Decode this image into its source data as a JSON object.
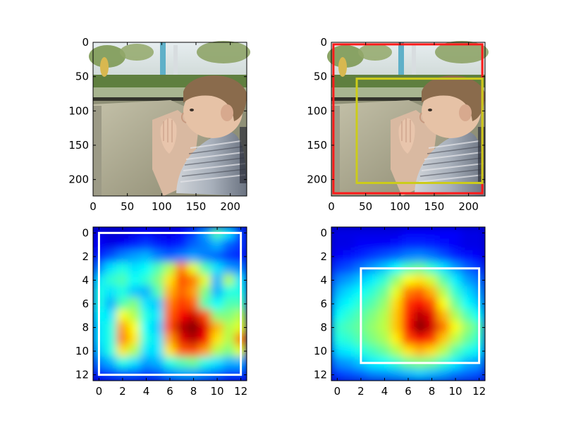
{
  "figure": {
    "background": "#ffffff"
  },
  "chart_data": [
    {
      "type": "image",
      "panel": "top-left",
      "content": "photo: young boy looking out of a vehicle window at trees and greenery",
      "xlim": [
        0,
        224
      ],
      "ylim": [
        224,
        0
      ],
      "xticks": [
        "0",
        "50",
        "100",
        "150",
        "200"
      ],
      "yticks": [
        "0",
        "50",
        "100",
        "150",
        "200"
      ],
      "xtick_values": [
        0,
        50,
        100,
        150,
        200
      ],
      "ytick_values": [
        0,
        50,
        100,
        150,
        200
      ],
      "boxes": []
    },
    {
      "type": "image",
      "panel": "top-right",
      "content": "same photo with two bounding boxes overlaid",
      "xlim": [
        0,
        224
      ],
      "ylim": [
        224,
        0
      ],
      "xticks": [
        "0",
        "50",
        "100",
        "150",
        "200"
      ],
      "yticks": [
        "0",
        "50",
        "100",
        "150",
        "200"
      ],
      "xtick_values": [
        0,
        50,
        100,
        150,
        200
      ],
      "ytick_values": [
        0,
        50,
        100,
        150,
        200
      ],
      "boxes": [
        {
          "x0": 3,
          "y0": 3,
          "x1": 220,
          "y1": 220,
          "color": "#ff1a1a"
        },
        {
          "x0": 37,
          "y0": 53,
          "x1": 220,
          "y1": 205,
          "color": "#cccc1a"
        }
      ]
    },
    {
      "type": "heatmap",
      "panel": "bottom-left",
      "colormap": "jet",
      "xlim": [
        -0.5,
        12.5
      ],
      "ylim": [
        12.5,
        -0.5
      ],
      "xticks": [
        "0",
        "2",
        "4",
        "6",
        "8",
        "10",
        "12"
      ],
      "yticks": [
        "0",
        "2",
        "4",
        "6",
        "8",
        "10",
        "12"
      ],
      "xtick_values": [
        0,
        2,
        4,
        6,
        8,
        10,
        12
      ],
      "ytick_values": [
        0,
        2,
        4,
        6,
        8,
        10,
        12
      ],
      "grid": [
        [
          0.1,
          0.08,
          0.08,
          0.1,
          0.12,
          0.1,
          0.1,
          0.12,
          0.18,
          0.28,
          0.45,
          0.35,
          0.18
        ],
        [
          0.12,
          0.1,
          0.12,
          0.15,
          0.18,
          0.15,
          0.14,
          0.16,
          0.22,
          0.25,
          0.3,
          0.22,
          0.18
        ],
        [
          0.15,
          0.2,
          0.25,
          0.28,
          0.3,
          0.25,
          0.22,
          0.25,
          0.28,
          0.25,
          0.22,
          0.18,
          0.15
        ],
        [
          0.25,
          0.35,
          0.4,
          0.35,
          0.38,
          0.45,
          0.55,
          0.75,
          0.6,
          0.45,
          0.35,
          0.28,
          0.25
        ],
        [
          0.35,
          0.42,
          0.45,
          0.38,
          0.42,
          0.5,
          0.65,
          0.8,
          0.75,
          0.6,
          0.3,
          0.55,
          0.35
        ],
        [
          0.4,
          0.35,
          0.4,
          0.32,
          0.3,
          0.45,
          0.7,
          0.78,
          0.72,
          0.5,
          0.3,
          0.4,
          0.4
        ],
        [
          0.4,
          0.3,
          0.45,
          0.5,
          0.35,
          0.32,
          0.75,
          0.82,
          0.78,
          0.45,
          0.38,
          0.45,
          0.45
        ],
        [
          0.38,
          0.35,
          0.62,
          0.55,
          0.4,
          0.35,
          0.78,
          0.88,
          0.92,
          0.8,
          0.5,
          0.5,
          0.55
        ],
        [
          0.35,
          0.4,
          0.72,
          0.62,
          0.38,
          0.32,
          0.8,
          0.95,
          1.0,
          0.9,
          0.7,
          0.55,
          0.6
        ],
        [
          0.35,
          0.4,
          0.75,
          0.65,
          0.4,
          0.35,
          0.72,
          0.9,
          0.95,
          0.88,
          0.65,
          0.55,
          0.75
        ],
        [
          0.32,
          0.4,
          0.65,
          0.55,
          0.35,
          0.35,
          0.65,
          0.78,
          0.8,
          0.72,
          0.55,
          0.5,
          0.6
        ],
        [
          0.25,
          0.3,
          0.4,
          0.35,
          0.28,
          0.3,
          0.4,
          0.45,
          0.48,
          0.4,
          0.35,
          0.3,
          0.3
        ],
        [
          0.15,
          0.18,
          0.2,
          0.2,
          0.18,
          0.2,
          0.25,
          0.28,
          0.28,
          0.25,
          0.22,
          0.18,
          0.18
        ]
      ],
      "boxes": [
        {
          "x0": 0,
          "y0": 0,
          "x1": 12,
          "y1": 12,
          "color": "#ffffff"
        }
      ]
    },
    {
      "type": "heatmap",
      "panel": "bottom-right",
      "colormap": "jet",
      "xlim": [
        -0.5,
        12.5
      ],
      "ylim": [
        12.5,
        -0.5
      ],
      "xticks": [
        "0",
        "2",
        "4",
        "6",
        "8",
        "10",
        "12"
      ],
      "yticks": [
        "0",
        "2",
        "4",
        "6",
        "8",
        "10",
        "12"
      ],
      "xtick_values": [
        0,
        2,
        4,
        6,
        8,
        10,
        12
      ],
      "ytick_values": [
        0,
        2,
        4,
        6,
        8,
        10,
        12
      ],
      "grid": [
        [
          0.1,
          0.1,
          0.1,
          0.1,
          0.1,
          0.1,
          0.12,
          0.12,
          0.12,
          0.12,
          0.12,
          0.1,
          0.1
        ],
        [
          0.1,
          0.1,
          0.12,
          0.12,
          0.12,
          0.14,
          0.16,
          0.16,
          0.15,
          0.14,
          0.12,
          0.1,
          0.1
        ],
        [
          0.12,
          0.14,
          0.16,
          0.18,
          0.2,
          0.22,
          0.25,
          0.26,
          0.24,
          0.2,
          0.16,
          0.14,
          0.12
        ],
        [
          0.18,
          0.2,
          0.24,
          0.28,
          0.32,
          0.38,
          0.45,
          0.48,
          0.42,
          0.35,
          0.28,
          0.22,
          0.18
        ],
        [
          0.25,
          0.28,
          0.32,
          0.36,
          0.42,
          0.52,
          0.62,
          0.65,
          0.58,
          0.46,
          0.36,
          0.28,
          0.24
        ],
        [
          0.3,
          0.34,
          0.38,
          0.42,
          0.48,
          0.6,
          0.75,
          0.78,
          0.7,
          0.55,
          0.42,
          0.34,
          0.28
        ],
        [
          0.34,
          0.38,
          0.42,
          0.46,
          0.52,
          0.66,
          0.82,
          0.88,
          0.8,
          0.62,
          0.48,
          0.38,
          0.32
        ],
        [
          0.38,
          0.42,
          0.46,
          0.5,
          0.55,
          0.68,
          0.85,
          0.95,
          0.9,
          0.7,
          0.55,
          0.45,
          0.38
        ],
        [
          0.42,
          0.45,
          0.48,
          0.52,
          0.56,
          0.68,
          0.88,
          1.0,
          0.92,
          0.76,
          0.62,
          0.52,
          0.45
        ],
        [
          0.4,
          0.42,
          0.46,
          0.5,
          0.54,
          0.64,
          0.8,
          0.88,
          0.82,
          0.68,
          0.56,
          0.48,
          0.42
        ],
        [
          0.34,
          0.36,
          0.4,
          0.44,
          0.48,
          0.55,
          0.65,
          0.7,
          0.66,
          0.56,
          0.46,
          0.4,
          0.36
        ],
        [
          0.26,
          0.28,
          0.32,
          0.36,
          0.38,
          0.42,
          0.48,
          0.5,
          0.48,
          0.42,
          0.36,
          0.3,
          0.28
        ],
        [
          0.18,
          0.2,
          0.22,
          0.25,
          0.26,
          0.28,
          0.3,
          0.32,
          0.3,
          0.28,
          0.24,
          0.22,
          0.2
        ]
      ],
      "boxes": [
        {
          "x0": 2,
          "y0": 3,
          "x1": 12,
          "y1": 11,
          "color": "#ffffff"
        }
      ]
    }
  ]
}
